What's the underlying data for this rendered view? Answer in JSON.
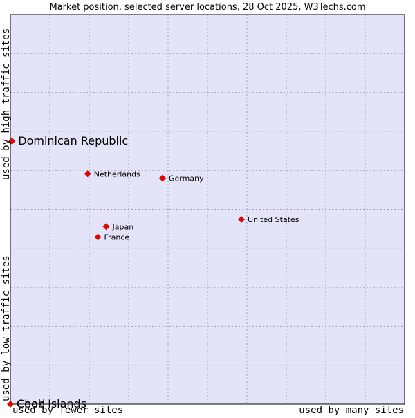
{
  "chart_data": {
    "type": "scatter",
    "title": "Market position, selected server locations, 28 Oct 2025, W3Techs.com",
    "xlabel_left": "used by fewer sites",
    "xlabel_right": "used by many sites",
    "ylabel_top": "used by high traffic sites",
    "ylabel_bottom": "used by low traffic sites",
    "xlim": [
      0,
      10
    ],
    "ylim": [
      0,
      10
    ],
    "grid": true,
    "points": [
      {
        "label": "Dominican Republic",
        "x": 0.04,
        "y": 6.75,
        "emphasis": true
      },
      {
        "label": "Cook Islands",
        "x": 0.0,
        "y": 0.0,
        "emphasis": true,
        "overlap_label": "Chad"
      },
      {
        "label": "Netherlands",
        "x": 1.96,
        "y": 5.91,
        "emphasis": false
      },
      {
        "label": "Germany",
        "x": 3.86,
        "y": 5.8,
        "emphasis": false
      },
      {
        "label": "United States",
        "x": 5.86,
        "y": 4.74,
        "emphasis": false
      },
      {
        "label": "Japan",
        "x": 2.43,
        "y": 4.56,
        "emphasis": false
      },
      {
        "label": "France",
        "x": 2.22,
        "y": 4.29,
        "emphasis": false
      }
    ],
    "colors": {
      "plot_background": "#e4e4f8",
      "grid": "#a0a0b8",
      "axis": "#000000",
      "point": "#ee0000"
    }
  }
}
